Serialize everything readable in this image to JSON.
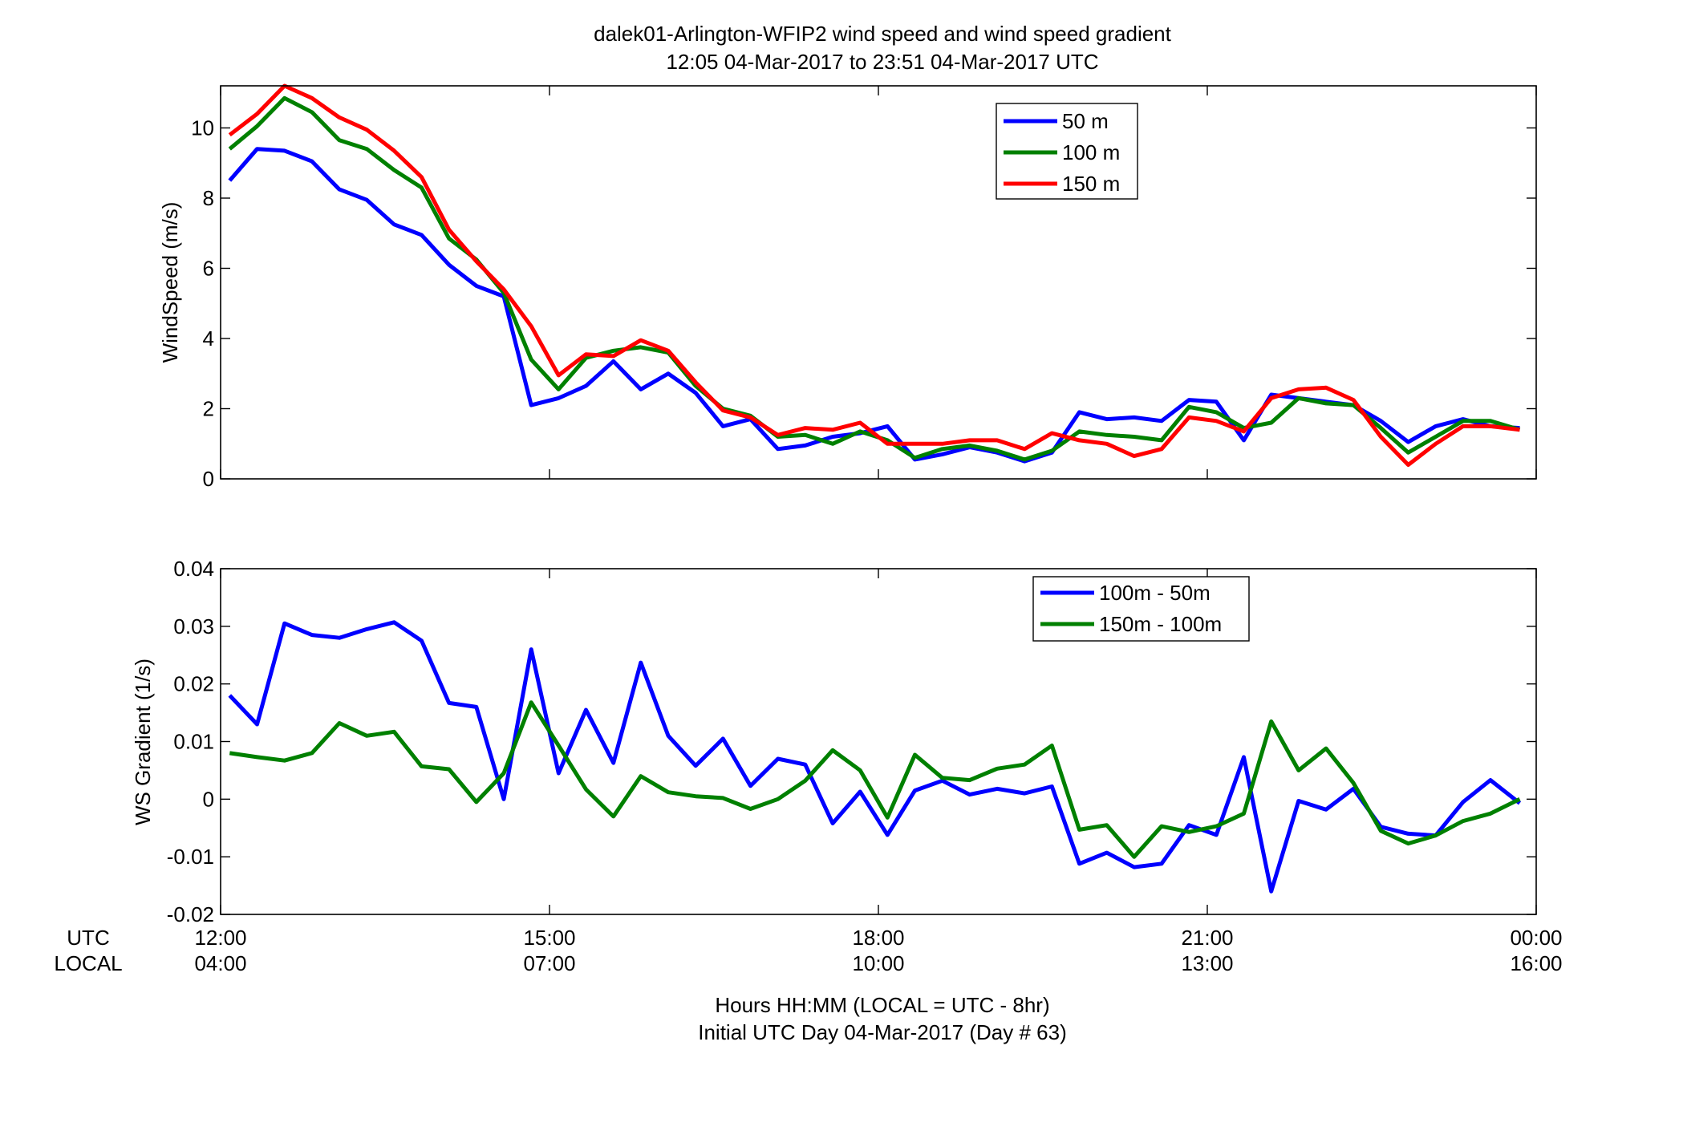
{
  "figure": {
    "title_line1": "dalek01-Arlington-WFIP2  wind speed and wind speed gradient",
    "title_line2": "12:05 04-Mar-2017 to 23:51 04-Mar-2017  UTC",
    "xlabel_line1": "Hours HH:MM  (LOCAL = UTC - 8hr)",
    "xlabel_line2": "Initial UTC Day 04-Mar-2017 (Day # 63)",
    "row_label_utc": "UTC",
    "row_label_local": "LOCAL",
    "xticks_utc": [
      "12:00",
      "15:00",
      "18:00",
      "21:00",
      "00:00"
    ],
    "xticks_local": [
      "04:00",
      "07:00",
      "10:00",
      "13:00",
      "16:00"
    ]
  },
  "chart_data": [
    {
      "type": "line",
      "title": "",
      "ylabel": "WindSpeed (m/s)",
      "xlim": [
        12.0,
        24.0
      ],
      "ylim": [
        0,
        11.2
      ],
      "yticks": [
        0,
        2,
        4,
        6,
        8,
        10
      ],
      "ytick_labels": [
        "0",
        "2",
        "4",
        "6",
        "8",
        "10"
      ],
      "grid": false,
      "legend_position": "top-center",
      "series": [
        {
          "name": "50 m",
          "color": "#0000ff",
          "x": [
            12.083,
            12.333,
            12.583,
            12.833,
            13.083,
            13.333,
            13.583,
            13.833,
            14.083,
            14.333,
            14.583,
            14.833,
            15.083,
            15.333,
            15.583,
            15.833,
            16.083,
            16.333,
            16.583,
            16.833,
            17.083,
            17.333,
            17.583,
            17.833,
            18.083,
            18.333,
            18.583,
            18.833,
            19.083,
            19.333,
            19.583,
            19.833,
            20.083,
            20.333,
            20.583,
            20.833,
            21.083,
            21.333,
            21.583,
            21.833,
            22.083,
            22.333,
            22.583,
            22.833,
            23.083,
            23.333,
            23.583,
            23.85
          ],
          "y": [
            8.5,
            9.4,
            9.35,
            9.05,
            8.25,
            7.95,
            7.25,
            6.95,
            6.1,
            5.5,
            5.2,
            2.1,
            2.3,
            2.65,
            3.35,
            2.55,
            3.0,
            2.45,
            1.5,
            1.7,
            0.85,
            0.95,
            1.2,
            1.3,
            1.5,
            0.55,
            0.7,
            0.9,
            0.75,
            0.5,
            0.75,
            1.9,
            1.7,
            1.75,
            1.65,
            2.25,
            2.2,
            1.1,
            2.4,
            2.3,
            2.2,
            2.1,
            1.65,
            1.05,
            1.5,
            1.7,
            1.5,
            1.45
          ]
        },
        {
          "name": "100 m",
          "color": "#008000",
          "x": [
            12.083,
            12.333,
            12.583,
            12.833,
            13.083,
            13.333,
            13.583,
            13.833,
            14.083,
            14.333,
            14.583,
            14.833,
            15.083,
            15.333,
            15.583,
            15.833,
            16.083,
            16.333,
            16.583,
            16.833,
            17.083,
            17.333,
            17.583,
            17.833,
            18.083,
            18.333,
            18.583,
            18.833,
            19.083,
            19.333,
            19.583,
            19.833,
            20.083,
            20.333,
            20.583,
            20.833,
            21.083,
            21.333,
            21.583,
            21.833,
            22.083,
            22.333,
            22.583,
            22.833,
            23.083,
            23.333,
            23.583,
            23.85
          ],
          "y": [
            9.4,
            10.05,
            10.85,
            10.45,
            9.65,
            9.4,
            8.8,
            8.3,
            6.85,
            6.25,
            5.3,
            3.4,
            2.55,
            3.45,
            3.65,
            3.75,
            3.6,
            2.65,
            2.0,
            1.8,
            1.2,
            1.25,
            1.0,
            1.35,
            1.1,
            0.6,
            0.85,
            0.95,
            0.8,
            0.55,
            0.8,
            1.35,
            1.25,
            1.2,
            1.1,
            2.05,
            1.9,
            1.45,
            1.6,
            2.3,
            2.15,
            2.1,
            1.45,
            0.75,
            1.2,
            1.65,
            1.65,
            1.4
          ]
        },
        {
          "name": "150 m",
          "color": "#ff0000",
          "x": [
            12.083,
            12.333,
            12.583,
            12.833,
            13.083,
            13.333,
            13.583,
            13.833,
            14.083,
            14.333,
            14.583,
            14.833,
            15.083,
            15.333,
            15.583,
            15.833,
            16.083,
            16.333,
            16.583,
            16.833,
            17.083,
            17.333,
            17.583,
            17.833,
            18.083,
            18.333,
            18.583,
            18.833,
            19.083,
            19.333,
            19.583,
            19.833,
            20.083,
            20.333,
            20.583,
            20.833,
            21.083,
            21.333,
            21.583,
            21.833,
            22.083,
            22.333,
            22.583,
            22.833,
            23.083,
            23.333,
            23.583,
            23.85
          ],
          "y": [
            9.8,
            10.4,
            11.2,
            10.85,
            10.3,
            9.95,
            9.35,
            8.6,
            7.1,
            6.2,
            5.4,
            4.35,
            2.95,
            3.55,
            3.5,
            3.95,
            3.65,
            2.75,
            1.95,
            1.75,
            1.25,
            1.45,
            1.4,
            1.6,
            1.0,
            1.0,
            1.0,
            1.1,
            1.1,
            0.85,
            1.3,
            1.1,
            1.0,
            0.65,
            0.85,
            1.75,
            1.65,
            1.35,
            2.3,
            2.55,
            2.6,
            2.25,
            1.2,
            0.4,
            1.0,
            1.5,
            1.5,
            1.4
          ]
        }
      ]
    },
    {
      "type": "line",
      "title": "",
      "ylabel": "WS Gradient (1/s)",
      "xlim": [
        12.0,
        24.0
      ],
      "ylim": [
        -0.02,
        0.04
      ],
      "yticks": [
        -0.02,
        -0.01,
        0,
        0.01,
        0.02,
        0.03,
        0.04
      ],
      "ytick_labels": [
        "-0.02",
        "-0.01",
        "0",
        "0.01",
        "0.02",
        "0.03",
        "0.04"
      ],
      "grid": false,
      "legend_position": "top-right",
      "series": [
        {
          "name": "100m - 50m",
          "color": "#0000ff",
          "x": [
            12.083,
            12.333,
            12.583,
            12.833,
            13.083,
            13.333,
            13.583,
            13.833,
            14.083,
            14.333,
            14.583,
            14.833,
            15.083,
            15.333,
            15.583,
            15.833,
            16.083,
            16.333,
            16.583,
            16.833,
            17.083,
            17.333,
            17.583,
            17.833,
            18.083,
            18.333,
            18.583,
            18.833,
            19.083,
            19.333,
            19.583,
            19.833,
            20.083,
            20.333,
            20.583,
            20.833,
            21.083,
            21.333,
            21.583,
            21.833,
            22.083,
            22.333,
            22.583,
            22.833,
            23.083,
            23.333,
            23.583,
            23.85
          ],
          "y": [
            0.018,
            0.013,
            0.0305,
            0.0285,
            0.028,
            0.0295,
            0.0307,
            0.0275,
            0.0167,
            0.016,
            0.0,
            0.026,
            0.0045,
            0.0155,
            0.0063,
            0.0237,
            0.011,
            0.0058,
            0.0105,
            0.0023,
            0.007,
            0.006,
            -0.0042,
            0.0013,
            -0.0062,
            0.0015,
            0.0032,
            0.0008,
            0.0018,
            0.001,
            0.0022,
            -0.0112,
            -0.0093,
            -0.0118,
            -0.0112,
            -0.0045,
            -0.0062,
            0.0073,
            -0.016,
            -0.0003,
            -0.0018,
            0.0018,
            -0.0048,
            -0.006,
            -0.0063,
            -0.0005,
            0.0033,
            -0.0007
          ]
        },
        {
          "name": "150m - 100m",
          "color": "#008000",
          "x": [
            12.083,
            12.333,
            12.583,
            12.833,
            13.083,
            13.333,
            13.583,
            13.833,
            14.083,
            14.333,
            14.583,
            14.833,
            15.083,
            15.333,
            15.583,
            15.833,
            16.083,
            16.333,
            16.583,
            16.833,
            17.083,
            17.333,
            17.583,
            17.833,
            18.083,
            18.333,
            18.583,
            18.833,
            19.083,
            19.333,
            19.583,
            19.833,
            20.083,
            20.333,
            20.583,
            20.833,
            21.083,
            21.333,
            21.583,
            21.833,
            22.083,
            22.333,
            22.583,
            22.833,
            23.083,
            23.333,
            23.583,
            23.85
          ],
          "y": [
            0.008,
            0.0073,
            0.0067,
            0.008,
            0.0132,
            0.011,
            0.0117,
            0.0057,
            0.0052,
            -0.0005,
            0.0045,
            0.0168,
            0.0093,
            0.0017,
            -0.003,
            0.004,
            0.0012,
            0.0005,
            0.0002,
            -0.0017,
            0.0,
            0.0032,
            0.0085,
            0.005,
            -0.0032,
            0.0077,
            0.0037,
            0.0033,
            0.0053,
            0.006,
            0.0093,
            -0.0053,
            -0.0045,
            -0.01,
            -0.0047,
            -0.0057,
            -0.0047,
            -0.0025,
            0.0135,
            0.005,
            0.0088,
            0.0028,
            -0.0055,
            -0.0077,
            -0.0063,
            -0.0038,
            -0.0025,
            0.0
          ]
        }
      ]
    }
  ]
}
